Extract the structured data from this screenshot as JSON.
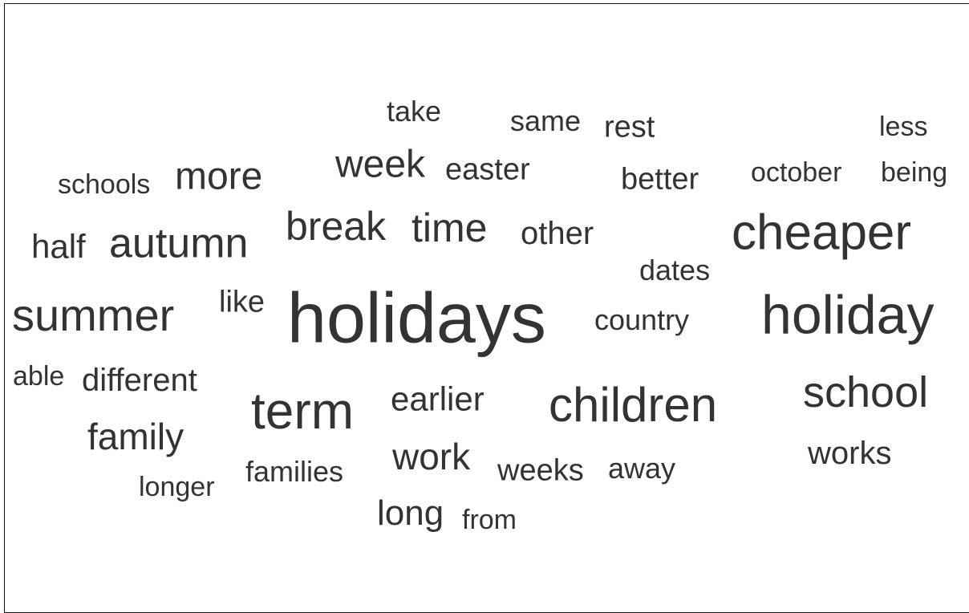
{
  "wordcloud": {
    "text_color": "#333333",
    "words": {
      "holidays": "holidays",
      "holiday": "holiday",
      "cheaper": "cheaper",
      "term": "term",
      "children": "children",
      "summer": "summer",
      "school": "school",
      "autumn": "autumn",
      "break": "break",
      "time": "time",
      "week": "week",
      "more": "more",
      "work": "work",
      "family": "family",
      "long": "long",
      "earlier": "earlier",
      "half": "half",
      "other": "other",
      "different": "different",
      "works": "works",
      "easter": "easter",
      "better": "better",
      "weeks": "weeks",
      "like": "like",
      "rest": "rest",
      "same": "same",
      "country": "country",
      "dates": "dates",
      "away": "away",
      "take": "take",
      "families": "families",
      "from": "from",
      "october": "october",
      "less": "less",
      "being": "being",
      "schools": "schools",
      "longer": "longer",
      "able": "able"
    }
  }
}
